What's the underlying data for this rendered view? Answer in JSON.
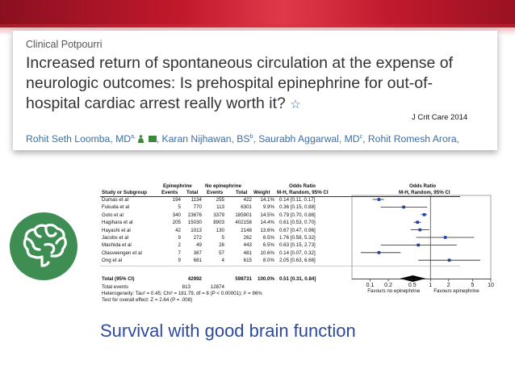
{
  "header": {
    "kicker": "Clinical Potpourri",
    "title": "Increased return of spontaneous circulation at the expense of neurologic outcomes: Is prehospital epinephrine for out-of-hospital cardiac arrest really worth it?",
    "star_icon": "star-icon",
    "journal_note": "J Crit Care 2014",
    "authors": [
      {
        "name": "Rohit Seth Loomba, MD",
        "sup": "a,"
      },
      {
        "name": "Karan Nijhawan, BS",
        "sup": "b"
      },
      {
        "name": "Saurabh Aggarwal, MD",
        "sup": "c"
      },
      {
        "name": "Rohit Romesh Arora,",
        "sup": ""
      }
    ],
    "author_separators": [
      ",",
      ","
    ]
  },
  "badge": {
    "icon": "brain-icon",
    "color": "#3e8e53"
  },
  "chart_data": {
    "type": "forest",
    "scale": "log",
    "xlim": [
      0.05,
      10
    ],
    "xticks": [
      "0.1",
      "0.2",
      "0.5",
      "1",
      "2",
      "5",
      "10"
    ],
    "xtick_values": [
      0.1,
      0.2,
      0.5,
      1,
      2,
      5,
      10
    ],
    "xlabel_left": "Favours no epinephrine",
    "xlabel_right": "Favours epinephrine",
    "group_headers": [
      "Epinephrine",
      "No epinephrine",
      "Odds Ratio",
      "Odds Ratio"
    ],
    "columns": [
      "Study or Subgroup",
      "Events",
      "Total",
      "Events",
      "Total",
      "Weight",
      "M-H, Random, 95% CI",
      "M-H, Random, 95% CI"
    ],
    "studies": [
      {
        "study": "Dumas et al",
        "e_ev": "194",
        "e_tot": "1134",
        "n_ev": "255",
        "n_tot": "422",
        "weight": "14.1%",
        "ci_text": "0.14 [0.11, 0.17]",
        "or": 0.14,
        "lo": 0.11,
        "hi": 0.17
      },
      {
        "study": "Fukuda et al",
        "e_ev": "5",
        "e_tot": "770",
        "n_ev": "113",
        "n_tot": "6301",
        "weight": "9.9%",
        "ci_text": "0.36 [0.15, 0.88]",
        "or": 0.36,
        "lo": 0.15,
        "hi": 0.88
      },
      {
        "study": "Goto et al",
        "e_ev": "340",
        "e_tot": "23676",
        "n_ev": "3379",
        "n_tot": "185901",
        "weight": "14.5%",
        "ci_text": "0.79 [0.70, 0.88]",
        "or": 0.79,
        "lo": 0.7,
        "hi": 0.88
      },
      {
        "study": "Hagihara et al",
        "e_ev": "205",
        "e_tot": "15030",
        "n_ev": "8903",
        "n_tot": "402158",
        "weight": "14.4%",
        "ci_text": "0.61 [0.53, 0.70]",
        "or": 0.61,
        "lo": 0.53,
        "hi": 0.7
      },
      {
        "study": "Hayashi et al",
        "e_ev": "42",
        "e_tot": "1013",
        "n_ev": "130",
        "n_tot": "2148",
        "weight": "13.6%",
        "ci_text": "0.67 [0.47, 0.96]",
        "or": 0.67,
        "lo": 0.47,
        "hi": 0.96
      },
      {
        "study": "Jacobs et al",
        "e_ev": "9",
        "e_tot": "272",
        "n_ev": "5",
        "n_tot": "262",
        "weight": "8.5%",
        "ci_text": "1.76 [0.58, 5.32]",
        "or": 1.76,
        "lo": 0.58,
        "hi": 5.32
      },
      {
        "study": "Machida et al",
        "e_ev": "2",
        "e_tot": "49",
        "n_ev": "28",
        "n_tot": "443",
        "weight": "6.5%",
        "ci_text": "0.63 [0.15, 2.73]",
        "or": 0.63,
        "lo": 0.15,
        "hi": 2.73
      },
      {
        "study": "Olasveengen et al",
        "e_ev": "7",
        "e_tot": "367",
        "n_ev": "57",
        "n_tot": "481",
        "weight": "10.6%",
        "ci_text": "0.14 [0.07, 0.32]",
        "or": 0.14,
        "lo": 0.07,
        "hi": 0.32
      },
      {
        "study": "Ong et al",
        "e_ev": "9",
        "e_tot": "681",
        "n_ev": "4",
        "n_tot": "615",
        "weight": "8.0%",
        "ci_text": "2.05 [0.63, 6.68]",
        "or": 2.05,
        "lo": 0.63,
        "hi": 6.68
      }
    ],
    "total": {
      "label": "Total (95% CI)",
      "e_tot": "42992",
      "n_tot": "598731",
      "weight": "100.0%",
      "ci_text": "0.51 [0.31, 0.84]",
      "or": 0.51,
      "lo": 0.31,
      "hi": 0.84
    },
    "total_events": {
      "label": "Total events",
      "e": "813",
      "n": "12874"
    },
    "heterogeneity": "Heterogeneity: Tau² = 0.45; Chi² = 181.79, df = 8 (P < 0.00001); I² = 96%",
    "overall_effect": "Test for overall effect: Z = 2.64 (P = .008)",
    "colors": {
      "point": "#1f3fa8",
      "diamond": "#000000"
    }
  },
  "caption": "Survival with good brain function"
}
